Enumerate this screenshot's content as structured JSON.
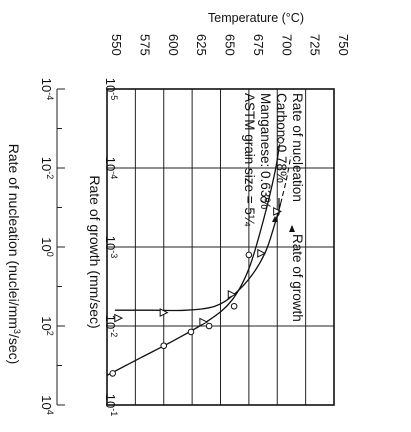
{
  "chart_data": {
    "type": "line",
    "top_axis": {
      "title": "Temperature (°C)",
      "ticks": [
        "550",
        "575",
        "600",
        "625",
        "650",
        "675",
        "700",
        "725",
        "750"
      ],
      "range": [
        550,
        750
      ]
    },
    "growth_axis": {
      "title": "Rate of growth (mm/sec)",
      "ticks": [
        {
          "label": "10",
          "exp": "-5"
        },
        {
          "label": "10",
          "exp": "-4"
        },
        {
          "label": "10",
          "exp": "-3"
        },
        {
          "label": "10",
          "exp": "-2"
        },
        {
          "label": "10",
          "exp": "-1"
        }
      ],
      "range_log10": [
        -5,
        -1
      ]
    },
    "nucleation_axis": {
      "title": "Rate of nucleation (nuclei/mm",
      "title_sup": "3",
      "title_end": "/sec)",
      "ticks": [
        {
          "label": "10",
          "exp": "-4"
        },
        {
          "label": "10",
          "exp": "-2"
        },
        {
          "label": "10",
          "exp": "0"
        },
        {
          "label": "10",
          "exp": "2"
        },
        {
          "label": "10",
          "exp": "4"
        }
      ],
      "range_log10": [
        -4,
        4
      ]
    },
    "annotations": {
      "lines": [
        "Rate of nucleation",
        "Carbon: 0.78%",
        "Manganese: 0.63%",
        "ASTM grain size = 5¼"
      ],
      "growth_label": "Rate of growth"
    },
    "series": [
      {
        "name": "Rate of nucleation",
        "marker": "circle",
        "axis": "nucleation",
        "points": [
          {
            "t": 555,
            "log_rate": 3.2
          },
          {
            "t": 600,
            "log_rate": 2.5
          },
          {
            "t": 624,
            "log_rate": 2.15
          },
          {
            "t": 640,
            "log_rate": 2.0
          },
          {
            "t": 662,
            "log_rate": 1.5
          },
          {
            "t": 675,
            "log_rate": 0.2
          },
          {
            "t": 688,
            "log_rate": -1.2
          },
          {
            "t": 703,
            "log_rate": -2.7
          }
        ]
      },
      {
        "name": "Rate of growth",
        "marker": "triangle",
        "axis": "growth",
        "points": [
          {
            "t": 560,
            "log_rate": -2.1
          },
          {
            "t": 600,
            "log_rate": -2.17
          },
          {
            "t": 635,
            "log_rate": -2.05
          },
          {
            "t": 660,
            "log_rate": -2.4
          },
          {
            "t": 686,
            "log_rate": -2.92
          },
          {
            "t": 700,
            "log_rate": -3.45
          }
        ]
      }
    ]
  }
}
